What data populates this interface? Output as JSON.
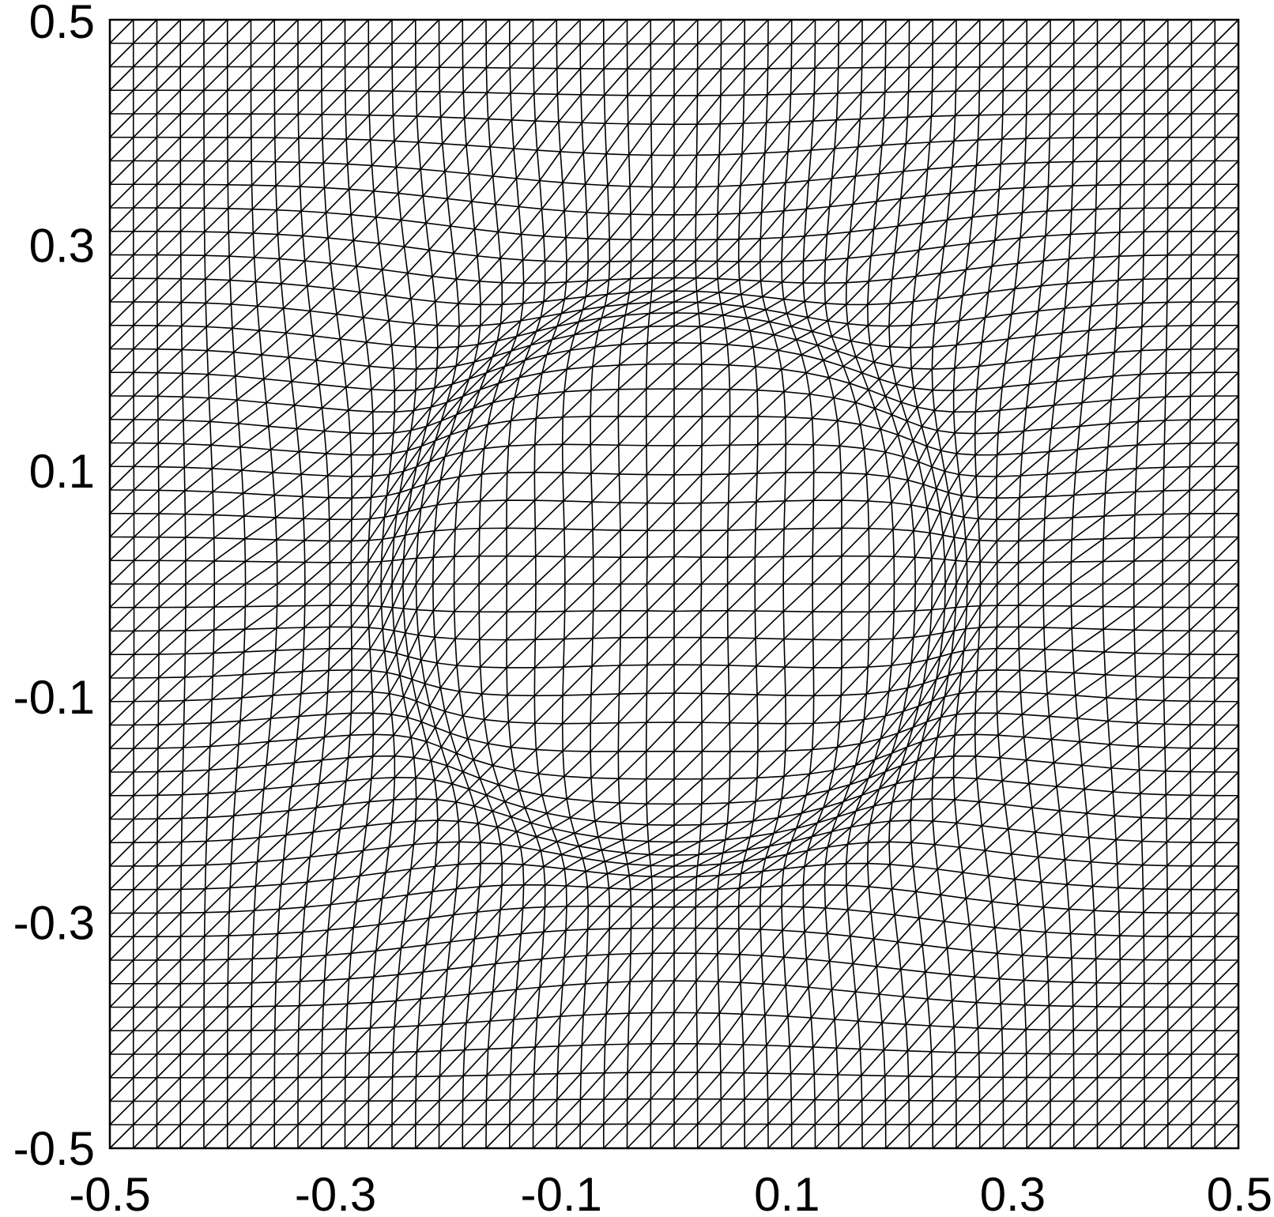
{
  "chart_data": {
    "type": "mesh",
    "xlim": [
      -0.5,
      0.5
    ],
    "ylim": [
      -0.5,
      0.5
    ],
    "x_ticks": [
      -0.5,
      -0.3,
      -0.1,
      0.1,
      0.3,
      0.5
    ],
    "y_ticks": [
      -0.5,
      -0.3,
      -0.1,
      0.1,
      0.3,
      0.5
    ],
    "x_tick_labels": [
      "-0.5",
      "-0.3",
      "-0.1",
      "0.1",
      "0.3",
      "0.5"
    ],
    "y_tick_labels": [
      "-0.5",
      "-0.3",
      "-0.1",
      "0.1",
      "0.3",
      "0.5"
    ],
    "grid_cells_per_side": 48,
    "element": "triangle",
    "diagonal": "bottom-left to top-right",
    "refinement": {
      "shape": "circle",
      "center": [
        0.0,
        0.0
      ],
      "radius": 0.25
    },
    "line_color": "#000000",
    "background_color": "#ffffff",
    "title": "",
    "xlabel": "",
    "ylabel": ""
  }
}
